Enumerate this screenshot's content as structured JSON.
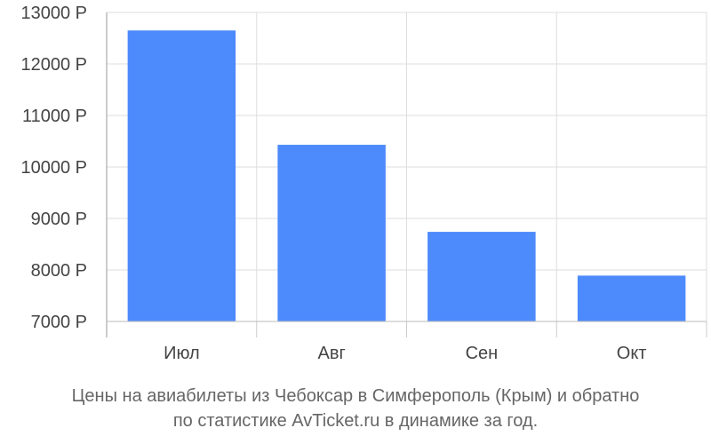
{
  "chart_data": {
    "type": "bar",
    "categories": [
      "Июл",
      "Авг",
      "Сен",
      "Окт"
    ],
    "values": [
      12650,
      10430,
      8740,
      7890
    ],
    "ylim": [
      7000,
      13000
    ],
    "yticks": [
      7000,
      8000,
      9000,
      10000,
      11000,
      12000,
      13000
    ],
    "ytick_suffix": " Р",
    "bar_color": "#4d8afb",
    "grid": true,
    "caption_line1": "Цены на авиабилеты из Чебоксар в Симферополь (Крым) и обратно",
    "caption_line2": "по статистике AvTicket.ru в динамике за год."
  }
}
